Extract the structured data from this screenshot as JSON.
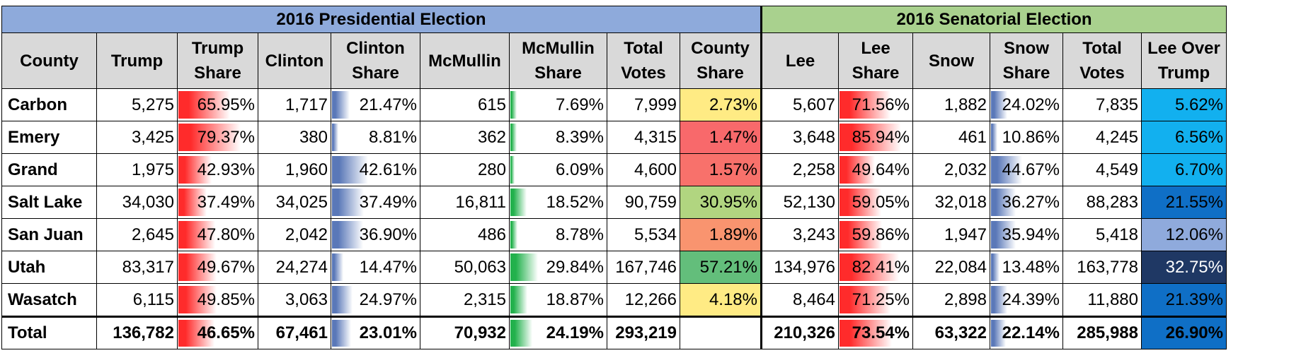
{
  "groups": {
    "presidential": "2016 Presidential Election",
    "senatorial": "2016 Senatorial Election"
  },
  "headers": {
    "county": "County",
    "trump": "Trump",
    "trump_share": "Trump Share",
    "clinton": "Clinton",
    "clinton_share": "Clinton Share",
    "mcmullin": "McMullin",
    "mcmullin_share": "McMullin Share",
    "total_votes": "Total Votes",
    "county_share": "County Share",
    "lee": "Lee",
    "lee_share": "Lee Share",
    "snow": "Snow",
    "snow_share": "Snow Share",
    "sen_total_votes": "Total Votes",
    "lee_over_trump": "Lee Over Trump"
  },
  "colors": {
    "presidential_header": "#8eaadb",
    "senatorial_header": "#a9d18e",
    "column_header": "#d9d9d9",
    "trump_bar": "#ff2b2b",
    "clinton_bar": "#5a78b8",
    "mcmullin_bar": "#22b14c"
  },
  "rows": [
    {
      "county": "Carbon",
      "trump": "5,275",
      "trump_share": "65.95%",
      "clinton": "1,717",
      "clinton_share": "21.47%",
      "mcmullin": "615",
      "mcmullin_share": "7.69%",
      "total_votes": "7,999",
      "county_share": "2.73%",
      "lee": "5,607",
      "lee_share": "71.56%",
      "snow": "1,882",
      "snow_share": "24.02%",
      "sen_total_votes": "7,835",
      "lee_over_trump": "5.62%",
      "county_share_color": "#ffeb84",
      "lot_color": "#12b0ef",
      "lot_text": "#000000"
    },
    {
      "county": "Emery",
      "trump": "3,425",
      "trump_share": "79.37%",
      "clinton": "380",
      "clinton_share": "8.81%",
      "mcmullin": "362",
      "mcmullin_share": "8.39%",
      "total_votes": "4,315",
      "county_share": "1.47%",
      "lee": "3,648",
      "lee_share": "85.94%",
      "snow": "461",
      "snow_share": "10.86%",
      "sen_total_votes": "4,245",
      "lee_over_trump": "6.56%",
      "county_share_color": "#f8696b",
      "lot_color": "#12b0ef",
      "lot_text": "#000000"
    },
    {
      "county": "Grand",
      "trump": "1,975",
      "trump_share": "42.93%",
      "clinton": "1,960",
      "clinton_share": "42.61%",
      "mcmullin": "280",
      "mcmullin_share": "6.09%",
      "total_votes": "4,600",
      "county_share": "1.57%",
      "lee": "2,258",
      "lee_share": "49.64%",
      "snow": "2,032",
      "snow_share": "44.67%",
      "sen_total_votes": "4,549",
      "lee_over_trump": "6.70%",
      "county_share_color": "#f8716b",
      "lot_color": "#12b0ef",
      "lot_text": "#000000"
    },
    {
      "county": "Salt Lake",
      "trump": "34,030",
      "trump_share": "37.49%",
      "clinton": "34,025",
      "clinton_share": "37.49%",
      "mcmullin": "16,811",
      "mcmullin_share": "18.52%",
      "total_votes": "90,759",
      "county_share": "30.95%",
      "lee": "52,130",
      "lee_share": "59.05%",
      "snow": "32,018",
      "snow_share": "36.27%",
      "sen_total_votes": "88,283",
      "lee_over_trump": "21.55%",
      "county_share_color": "#b1d580",
      "lot_color": "#0f6fc6",
      "lot_text": "#000000"
    },
    {
      "county": "San Juan",
      "trump": "2,645",
      "trump_share": "47.80%",
      "clinton": "2,042",
      "clinton_share": "36.90%",
      "mcmullin": "486",
      "mcmullin_share": "8.78%",
      "total_votes": "5,534",
      "county_share": "1.89%",
      "lee": "3,243",
      "lee_share": "59.86%",
      "snow": "1,947",
      "snow_share": "35.94%",
      "sen_total_votes": "5,418",
      "lee_over_trump": "12.06%",
      "county_share_color": "#f9946f",
      "lot_color": "#8faadc",
      "lot_text": "#000000"
    },
    {
      "county": "Utah",
      "trump": "83,317",
      "trump_share": "49.67%",
      "clinton": "24,274",
      "clinton_share": "14.47%",
      "mcmullin": "50,063",
      "mcmullin_share": "29.84%",
      "total_votes": "167,746",
      "county_share": "57.21%",
      "lee": "134,976",
      "lee_share": "82.41%",
      "snow": "22,084",
      "snow_share": "13.48%",
      "sen_total_votes": "163,778",
      "lee_over_trump": "32.75%",
      "county_share_color": "#63be7b",
      "lot_color": "#1f3864",
      "lot_text": "#ffffff"
    },
    {
      "county": "Wasatch",
      "trump": "6,115",
      "trump_share": "49.85%",
      "clinton": "3,063",
      "clinton_share": "24.97%",
      "mcmullin": "2,315",
      "mcmullin_share": "18.87%",
      "total_votes": "12,266",
      "county_share": "4.18%",
      "lee": "8,464",
      "lee_share": "71.25%",
      "snow": "2,898",
      "snow_share": "24.39%",
      "sen_total_votes": "11,880",
      "lee_over_trump": "21.39%",
      "county_share_color": "#ffeb84",
      "lot_color": "#0f6fc6",
      "lot_text": "#000000"
    }
  ],
  "total": {
    "county": "Total",
    "trump": "136,782",
    "trump_share": "46.65%",
    "clinton": "67,461",
    "clinton_share": "23.01%",
    "mcmullin": "70,932",
    "mcmullin_share": "24.19%",
    "total_votes": "293,219",
    "county_share": "",
    "lee": "210,326",
    "lee_share": "73.54%",
    "snow": "63,322",
    "snow_share": "22.14%",
    "sen_total_votes": "285,988",
    "lee_over_trump": "26.90%",
    "lot_color": "#0f6fc6",
    "lot_text": "#000000"
  }
}
